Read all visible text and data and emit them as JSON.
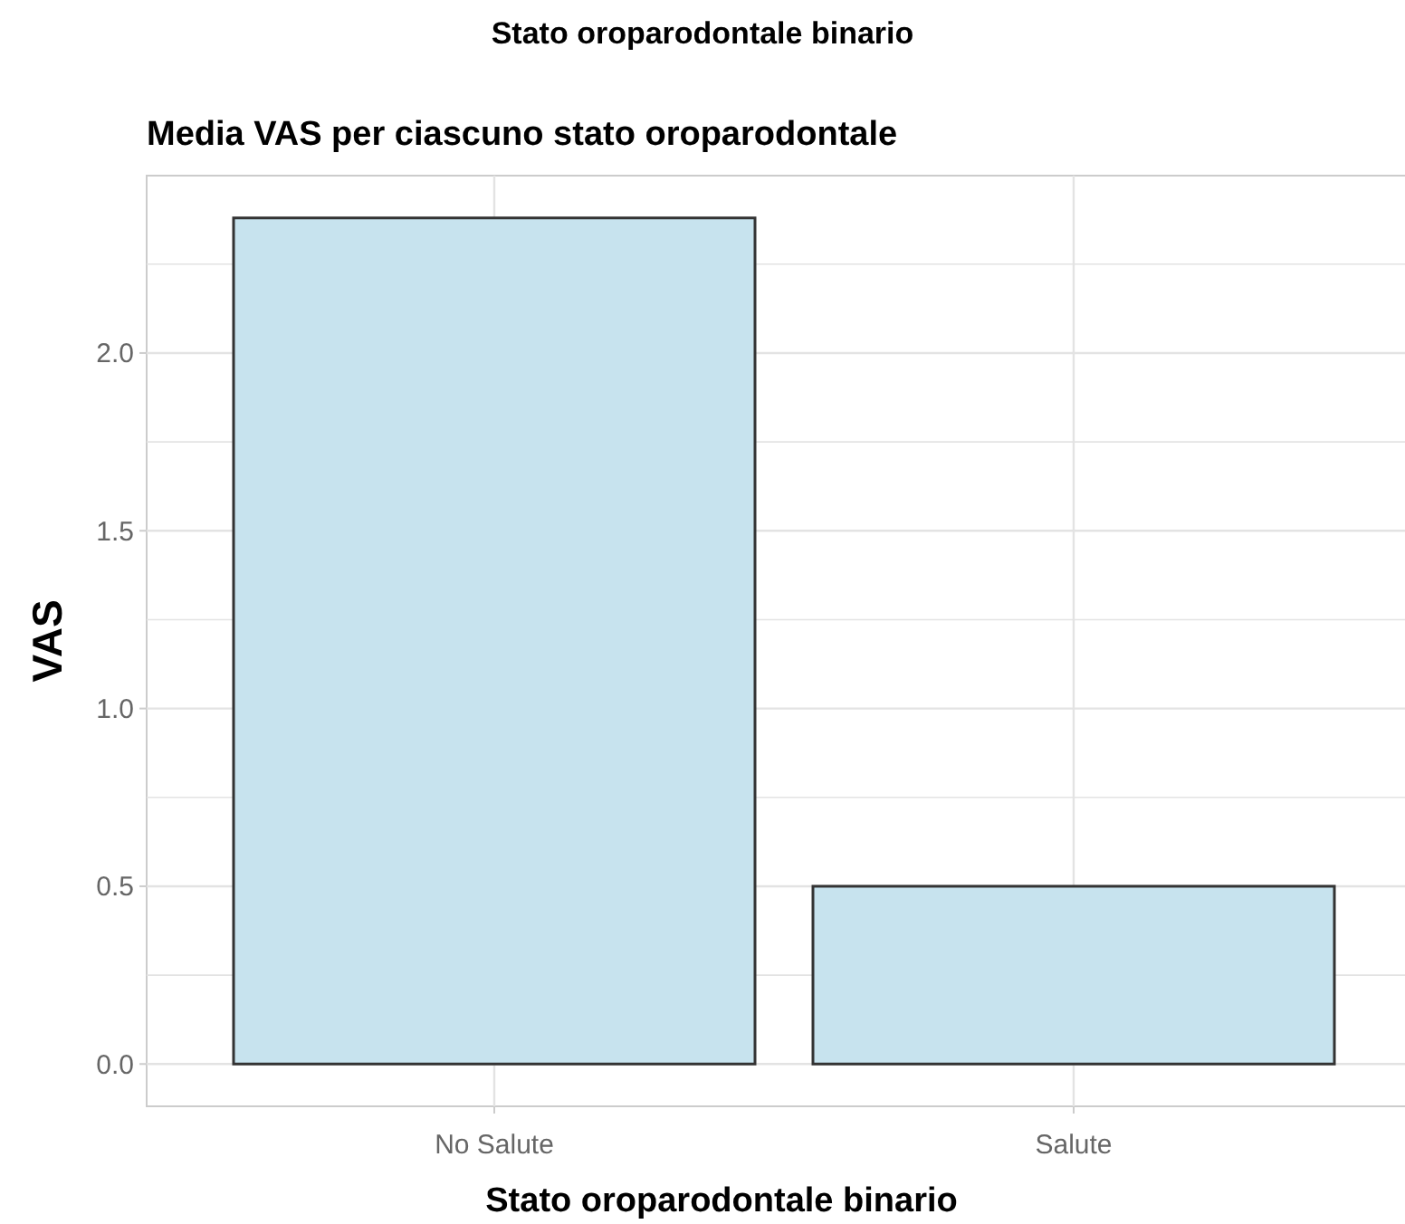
{
  "chart_data": {
    "type": "bar",
    "title": "Stato oroparodontale binario",
    "subtitle": "Media VAS per ciascuno stato oroparodontale",
    "xlabel": "Stato oroparodontale binario",
    "ylabel": "VAS",
    "categories": [
      "No Salute",
      "Salute"
    ],
    "values": [
      2.38,
      0.5
    ],
    "color": "#c7e3ee",
    "ylim": [
      -0.119,
      2.499
    ],
    "yticks": [
      {
        "value": 0,
        "label": "0.0"
      },
      {
        "value": 0.25,
        "label": null
      },
      0.5,
      {
        "value": 0.75,
        "label": null
      },
      {
        "value": 1,
        "label": "1.0"
      },
      {
        "value": 1.25,
        "label": null
      },
      1.5,
      {
        "value": 1.75,
        "label": null
      },
      {
        "value": 2,
        "label": "2.0"
      },
      {
        "value": 2.25,
        "label": null
      }
    ],
    "grid": true
  }
}
